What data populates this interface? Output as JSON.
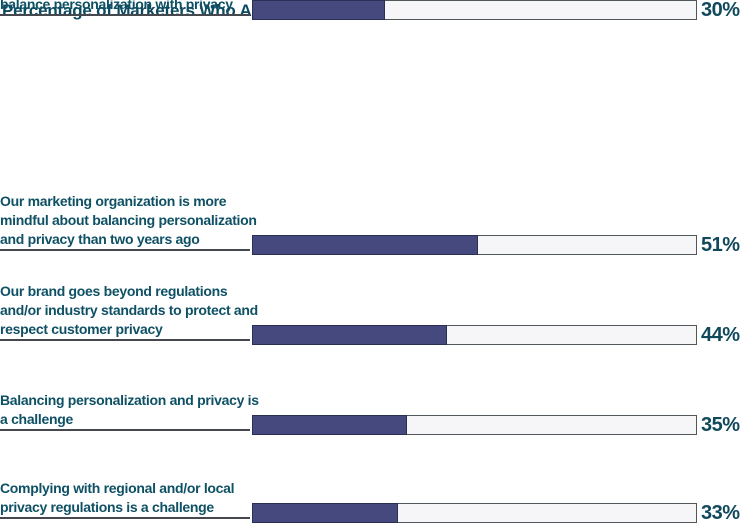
{
  "chart_data": {
    "type": "bar",
    "orientation": "horizontal",
    "title": "Percentage of Marketers Who Agree with the Following",
    "xlabel": "",
    "ylabel": "",
    "unit": "%",
    "xlim": [
      0,
      100
    ],
    "grid": false,
    "legend": false,
    "categories": [
      "Our marketing organization is more mindful about balancing personalization and privacy than two years ago",
      "Our brand goes beyond regulations and/or industry standards to protect and respect customer privacy",
      "Balancing personalization and privacy is a challenge",
      "Complying with regional and/or local privacy regulations is a challenge",
      "Our marketing organization is completely satisfied with our ability to balance personalization with privacy"
    ],
    "values": [
      51,
      44,
      35,
      33,
      30
    ],
    "rows": [
      {
        "label": "Our marketing organization is more mindful about balancing personalization and privacy than two years ago",
        "value": 51,
        "value_label": "51%"
      },
      {
        "label": "Our brand goes beyond regulations and/or industry standards to protect and respect customer privacy",
        "value": 44,
        "value_label": "44%"
      },
      {
        "label": "Balancing personalization and privacy is a challenge",
        "value": 35,
        "value_label": "35%"
      },
      {
        "label": "Complying with regional and/or local privacy regulations is a challenge",
        "value": 33,
        "value_label": "33%"
      },
      {
        "label": "Our marketing organization is completely satisfied with our ability to balance personalization with privacy",
        "value": 30,
        "value_label": "30%"
      }
    ],
    "colors": {
      "title_text": "#0d4a60",
      "category_text": "#0e5064",
      "value_text": "#10485c",
      "bar_fill": "#46497d",
      "bar_fill_border": "#2c2f55",
      "bar_track": "#f6f5f7",
      "track_border": "#50575a",
      "leader_line": "#45484f",
      "background": "#ffffff"
    }
  }
}
